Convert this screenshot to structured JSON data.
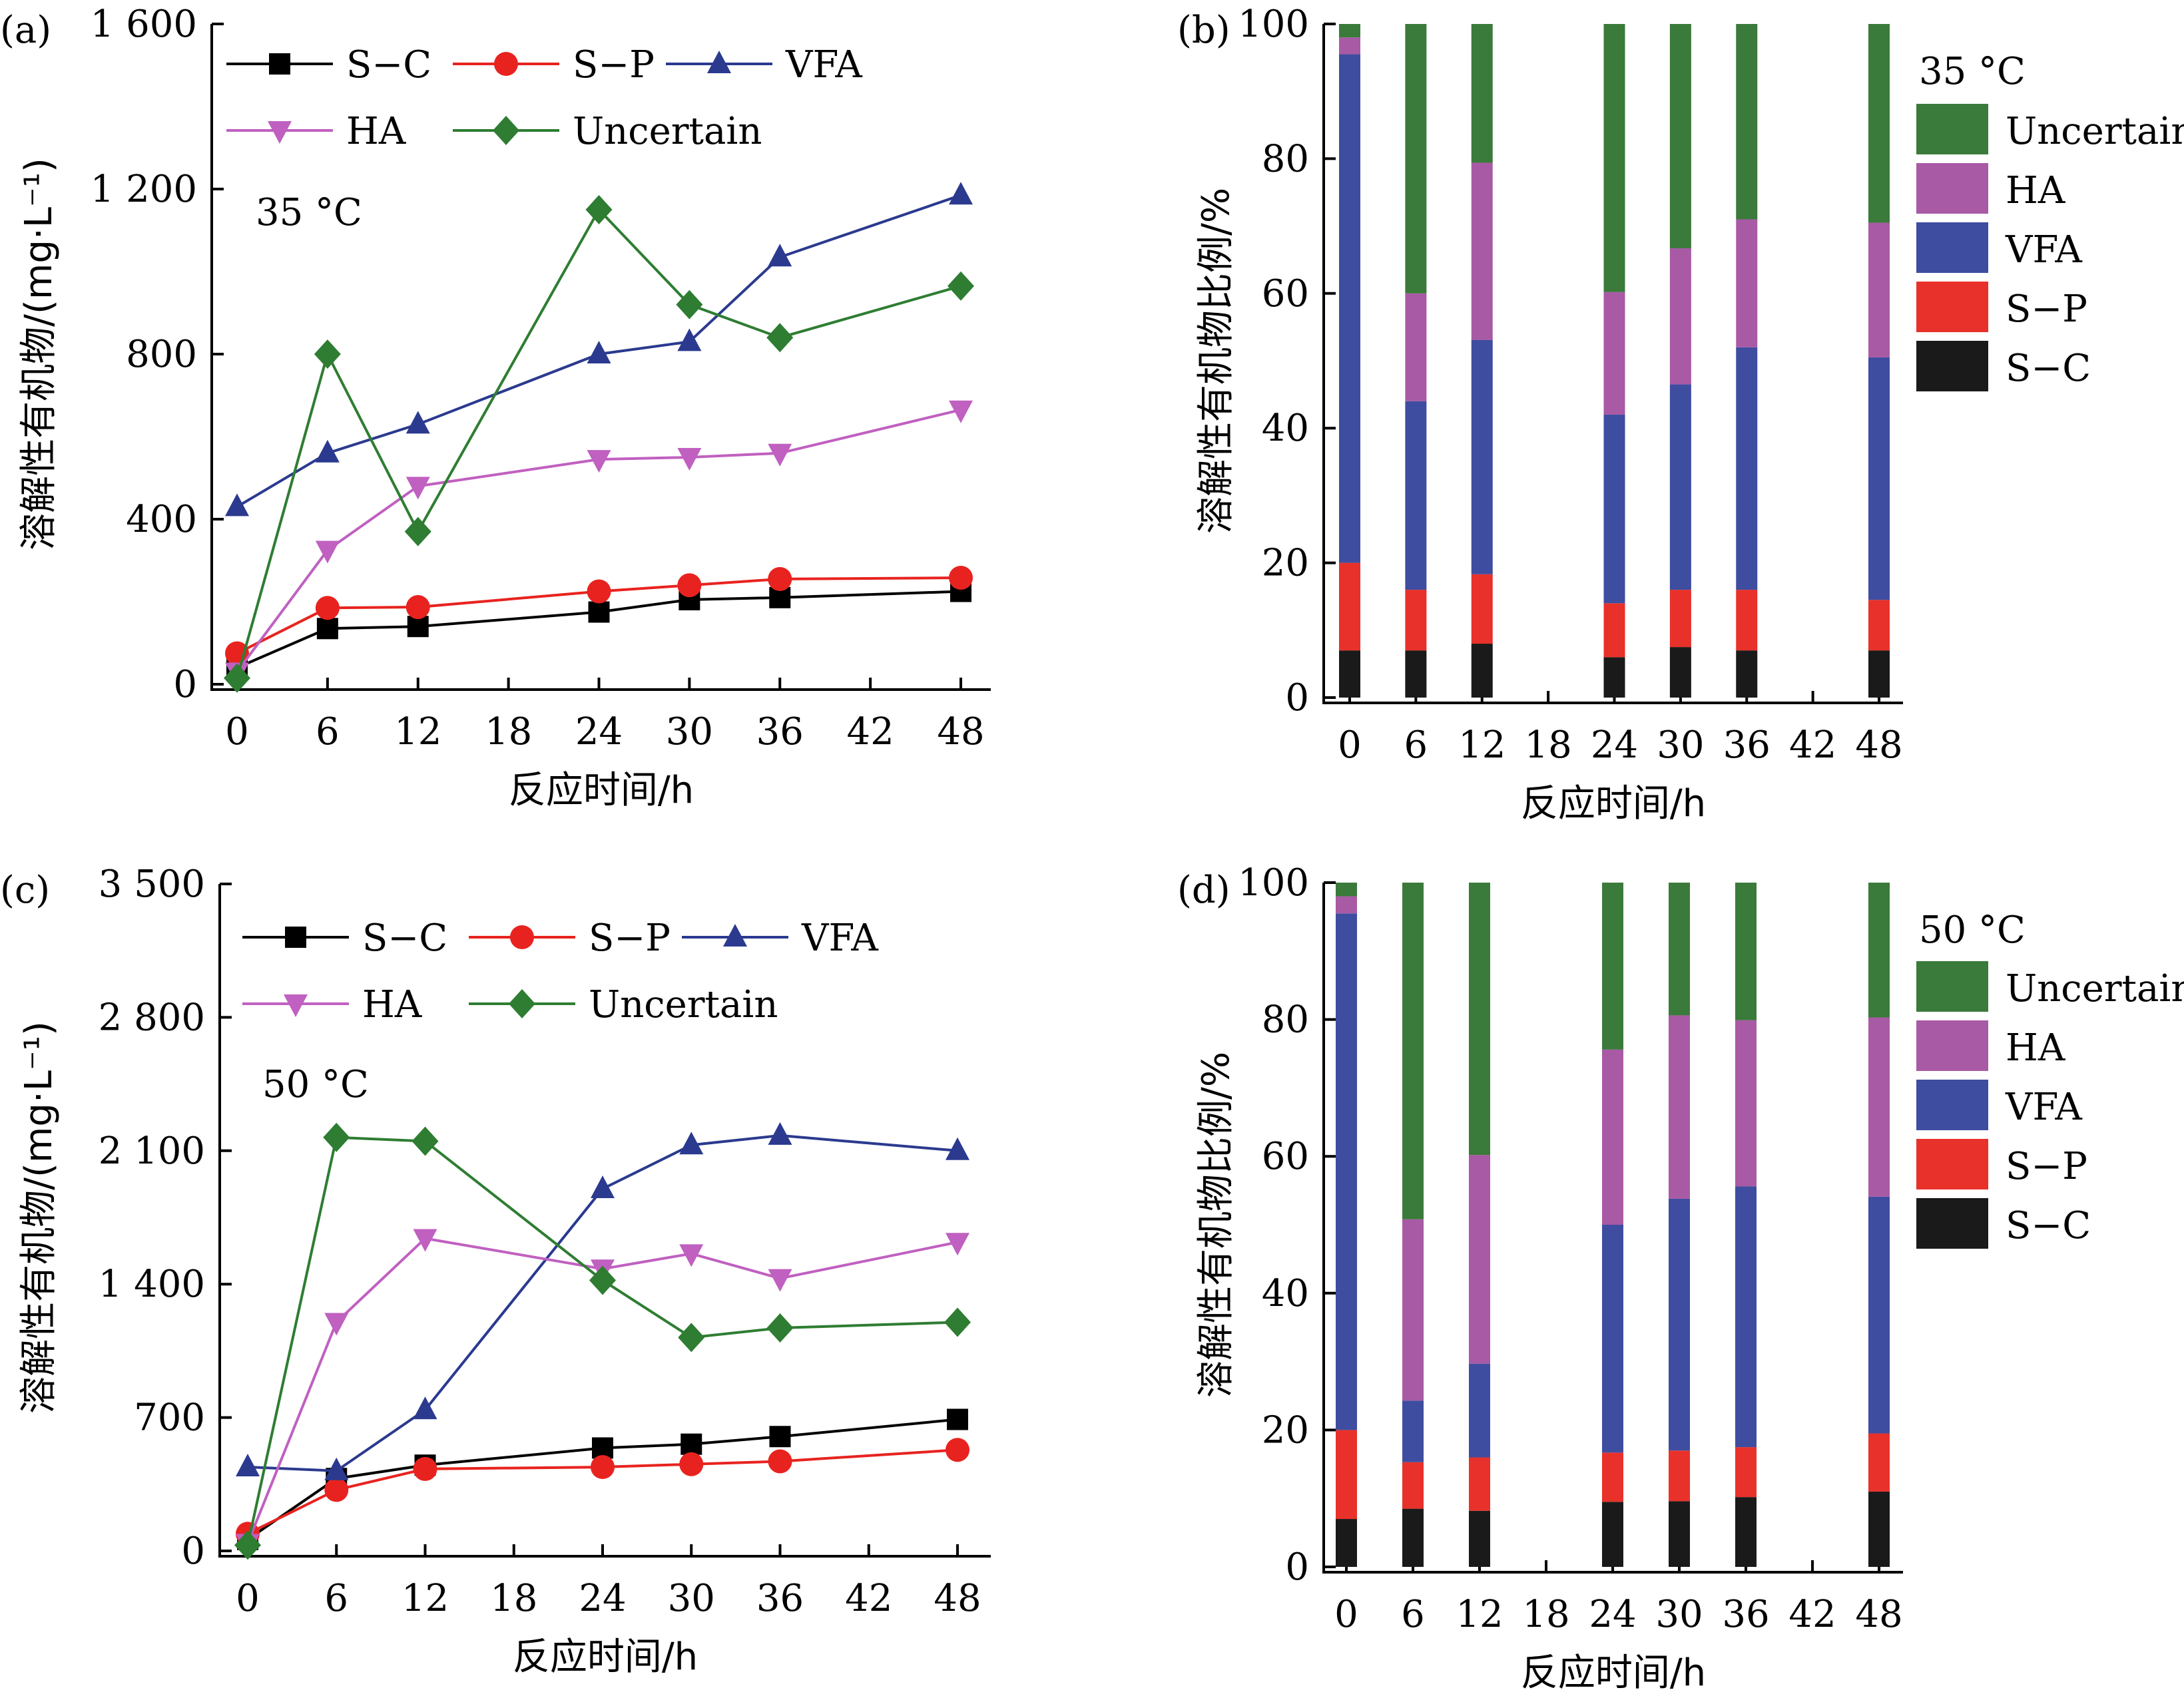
{
  "figure": {
    "x_axis_title": "反应时间/h",
    "x_ticks": [
      "0",
      "6",
      "12",
      "18",
      "24",
      "30",
      "36",
      "42",
      "48"
    ],
    "legend_items": [
      "Uncertain",
      "HA",
      "VFA",
      "S−P",
      "S−C"
    ]
  },
  "colors": {
    "S-C": "#000000",
    "S-P": "#e8231f",
    "VFA": "#2b3a8f",
    "HA": "#c060c0",
    "Uncertain": "#2e7d32",
    "bar_Uncertain": "#3a7a3a",
    "bar_HA": "#a85aa5",
    "bar_VFA": "#3f4da0",
    "bar_S-P": "#e8312a",
    "bar_S-C": "#1a1a1a"
  },
  "chart_data": [
    {
      "panel": "(a)",
      "type": "line",
      "temperature": "35 °C",
      "ylabel": "溶解性有机物/(mg·L⁻¹)",
      "xlabel": "反应时间/h",
      "ylim": [
        0,
        1600
      ],
      "y_ticks": [
        "0",
        "400",
        "800",
        "1 200",
        "1 600"
      ],
      "x": [
        0,
        6,
        12,
        24,
        30,
        36,
        48
      ],
      "series": [
        {
          "name": "S−C",
          "marker": "square",
          "values": [
            40,
            135,
            140,
            175,
            205,
            210,
            225
          ]
        },
        {
          "name": "S−P",
          "marker": "circle",
          "values": [
            75,
            185,
            187,
            225,
            240,
            255,
            258
          ]
        },
        {
          "name": "VFA",
          "marker": "triangle-up",
          "values": [
            430,
            560,
            630,
            800,
            830,
            1035,
            1185
          ]
        },
        {
          "name": "HA",
          "marker": "triangle-down",
          "values": [
            30,
            325,
            480,
            545,
            550,
            560,
            665
          ]
        },
        {
          "name": "Uncertain",
          "marker": "diamond",
          "values": [
            15,
            800,
            370,
            1150,
            920,
            840,
            965
          ]
        }
      ]
    },
    {
      "panel": "(b)",
      "type": "bar",
      "stacked": true,
      "temperature": "35 °C",
      "ylabel": "溶解性有机物比例/%",
      "xlabel": "反应时间/h",
      "ylim": [
        0,
        100
      ],
      "y_ticks": [
        "0",
        "20",
        "40",
        "60",
        "80",
        "100"
      ],
      "x": [
        0,
        6,
        12,
        24,
        30,
        36,
        48
      ],
      "series": [
        {
          "name": "S−C",
          "values": [
            7,
            7,
            8,
            6,
            7.5,
            7,
            7
          ]
        },
        {
          "name": "S−P",
          "values": [
            13,
            9,
            10.3,
            8,
            8.5,
            9,
            7.5
          ]
        },
        {
          "name": "VFA",
          "values": [
            75.5,
            28,
            34.8,
            28,
            30.5,
            36,
            36
          ]
        },
        {
          "name": "HA",
          "values": [
            2.5,
            16,
            26.3,
            18.2,
            20.2,
            19,
            20
          ]
        },
        {
          "name": "Uncertain",
          "values": [
            2,
            40,
            20.6,
            39.8,
            33.3,
            29,
            29.5
          ]
        }
      ],
      "legend_position": "right"
    },
    {
      "panel": "(c)",
      "type": "line",
      "temperature": "50 °C",
      "ylabel": "溶解性有机物/(mg·L⁻¹)",
      "xlabel": "反应时间/h",
      "ylim": [
        0,
        3500
      ],
      "y_ticks": [
        "0",
        "700",
        "1 400",
        "2 100",
        "2 800",
        "3 500"
      ],
      "x": [
        0,
        6,
        12,
        24,
        30,
        36,
        48
      ],
      "series": [
        {
          "name": "S−C",
          "marker": "square",
          "values": [
            60,
            380,
            450,
            540,
            560,
            600,
            690
          ]
        },
        {
          "name": "S−P",
          "marker": "circle",
          "values": [
            90,
            320,
            430,
            440,
            455,
            470,
            530
          ]
        },
        {
          "name": "VFA",
          "marker": "triangle-up",
          "values": [
            440,
            420,
            740,
            1900,
            2130,
            2180,
            2100
          ]
        },
        {
          "name": "HA",
          "marker": "triangle-down",
          "values": [
            40,
            1200,
            1640,
            1480,
            1560,
            1430,
            1620
          ]
        },
        {
          "name": "Uncertain",
          "marker": "diamond",
          "values": [
            30,
            2170,
            2150,
            1420,
            1120,
            1170,
            1200
          ]
        }
      ]
    },
    {
      "panel": "(d)",
      "type": "bar",
      "stacked": true,
      "temperature": "50 °C",
      "ylabel": "溶解性有机物比例/%",
      "xlabel": "反应时间/h",
      "ylim": [
        0,
        100
      ],
      "y_ticks": [
        "0",
        "20",
        "40",
        "60",
        "80",
        "100"
      ],
      "x": [
        0,
        6,
        12,
        24,
        30,
        36,
        48
      ],
      "series": [
        {
          "name": "S−C",
          "values": [
            7,
            8.5,
            8.2,
            9.5,
            9.6,
            10.2,
            11
          ]
        },
        {
          "name": "S−P",
          "values": [
            13,
            6.8,
            7.8,
            7.2,
            7.4,
            7.3,
            8.5
          ]
        },
        {
          "name": "VFA",
          "values": [
            75.5,
            9,
            13.7,
            33.3,
            36.8,
            38.1,
            34.6
          ]
        },
        {
          "name": "HA",
          "values": [
            2.5,
            26.5,
            30.5,
            25.6,
            26.8,
            24.3,
            26.2
          ]
        },
        {
          "name": "Uncertain",
          "values": [
            2,
            49.2,
            39.8,
            24.4,
            19.4,
            20.1,
            19.7
          ]
        }
      ],
      "legend_position": "right"
    }
  ]
}
